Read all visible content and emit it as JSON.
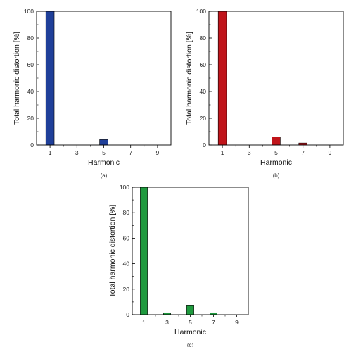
{
  "chart_data": [
    {
      "type": "bar",
      "panel_label": "(a)",
      "categories": [
        "1",
        "3",
        "5",
        "7",
        "9"
      ],
      "x": [
        1,
        3,
        5,
        7,
        9
      ],
      "values": [
        100,
        0,
        4,
        0,
        0
      ],
      "xlabel": "Harmonic",
      "ylabel": "Total harmonic distortion [%]",
      "ylim": [
        0,
        100
      ],
      "yticks": [
        "0",
        "20",
        "40",
        "60",
        "80",
        "100"
      ],
      "color": "#1f3f99",
      "grid": false
    },
    {
      "type": "bar",
      "panel_label": "(b)",
      "categories": [
        "1",
        "3",
        "5",
        "7",
        "9"
      ],
      "x": [
        1,
        3,
        5,
        7,
        9
      ],
      "values": [
        100,
        0,
        6,
        1.5,
        0
      ],
      "xlabel": "Harmonic",
      "ylabel": "Total harmonic distortion [%]",
      "ylim": [
        0,
        100
      ],
      "yticks": [
        "0",
        "20",
        "40",
        "60",
        "80",
        "100"
      ],
      "color": "#c0141a",
      "grid": false
    },
    {
      "type": "bar",
      "panel_label": "(c)",
      "categories": [
        "1",
        "3",
        "5",
        "7",
        "9"
      ],
      "x": [
        1,
        3,
        5,
        7,
        9
      ],
      "values": [
        100,
        1.5,
        7,
        1.5,
        0
      ],
      "xlabel": "Harmonic",
      "ylabel": "Total harmonic distortion [%]",
      "ylim": [
        0,
        100
      ],
      "yticks": [
        "0",
        "20",
        "40",
        "60",
        "80",
        "100"
      ],
      "color": "#1f9a3e",
      "grid": false
    }
  ]
}
